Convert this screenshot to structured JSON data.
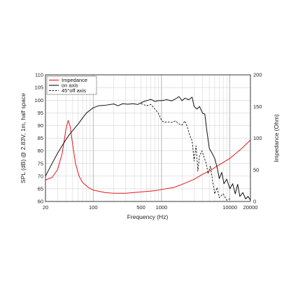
{
  "chart_data": {
    "type": "line",
    "xlabel": "Frequency (Hz)",
    "ylabel": "SPL (dB) @ 2.83V, 1m, half space",
    "y2label": "Impedance (Ohm)",
    "xscale": "log",
    "xlim": [
      20,
      20000
    ],
    "ylim": [
      60,
      110
    ],
    "y2lim": [
      0,
      200
    ],
    "grid": true,
    "legend_position": "top-left",
    "x_tick_labels": [
      {
        "value": 20,
        "label": "20"
      },
      {
        "value": 100,
        "label": "100"
      },
      {
        "value": 500,
        "label": "500"
      },
      {
        "value": 1000,
        "label": "1000"
      },
      {
        "value": 10000,
        "label": "10000"
      },
      {
        "value": 20000,
        "label": "20000"
      }
    ],
    "y_ticks": [
      60,
      65,
      70,
      75,
      80,
      85,
      90,
      95,
      100,
      105,
      110
    ],
    "y2_ticks": [
      0,
      50,
      100,
      150,
      200
    ],
    "series": [
      {
        "name": "Impedance",
        "axis": "right",
        "color": "#e8141b",
        "dash": "solid",
        "points": [
          [
            20,
            34
          ],
          [
            25,
            38
          ],
          [
            30,
            50
          ],
          [
            35,
            75
          ],
          [
            40,
            115
          ],
          [
            43,
            128
          ],
          [
            46,
            118
          ],
          [
            50,
            90
          ],
          [
            55,
            60
          ],
          [
            62,
            40
          ],
          [
            70,
            30
          ],
          [
            85,
            22
          ],
          [
            100,
            18
          ],
          [
            150,
            14
          ],
          [
            200,
            13
          ],
          [
            300,
            13
          ],
          [
            500,
            15
          ],
          [
            800,
            17
          ],
          [
            1000,
            19
          ],
          [
            1500,
            22
          ],
          [
            2000,
            27
          ],
          [
            3000,
            35
          ],
          [
            4000,
            43
          ],
          [
            5000,
            48
          ],
          [
            7000,
            58
          ],
          [
            10000,
            68
          ],
          [
            15000,
            84
          ],
          [
            20000,
            97
          ]
        ]
      },
      {
        "name": "on axis",
        "axis": "left",
        "color": "#111111",
        "dash": "solid",
        "points": [
          [
            20,
            70
          ],
          [
            25,
            75
          ],
          [
            30,
            79
          ],
          [
            35,
            82
          ],
          [
            40,
            84.5
          ],
          [
            45,
            86.5
          ],
          [
            50,
            88
          ],
          [
            60,
            90.5
          ],
          [
            70,
            93
          ],
          [
            80,
            95
          ],
          [
            100,
            97
          ],
          [
            120,
            97.8
          ],
          [
            150,
            98
          ],
          [
            200,
            98.5
          ],
          [
            230,
            97.8
          ],
          [
            270,
            98.6
          ],
          [
            320,
            98.4
          ],
          [
            380,
            98.6
          ],
          [
            450,
            98.3
          ],
          [
            520,
            99.2
          ],
          [
            600,
            99.8
          ],
          [
            700,
            100.3
          ],
          [
            800,
            99.5
          ],
          [
            900,
            99.8
          ],
          [
            1000,
            99.8
          ],
          [
            1200,
            100.2
          ],
          [
            1400,
            99.7
          ],
          [
            1600,
            100.5
          ],
          [
            1800,
            101.4
          ],
          [
            2000,
            99.8
          ],
          [
            2200,
            100.8
          ],
          [
            2500,
            100.2
          ],
          [
            2800,
            101.2
          ],
          [
            3000,
            97.5
          ],
          [
            3300,
            96.5
          ],
          [
            3600,
            97.5
          ],
          [
            4000,
            94.8
          ],
          [
            4300,
            94.5
          ],
          [
            4600,
            88
          ],
          [
            5000,
            81
          ],
          [
            5500,
            79
          ],
          [
            6000,
            77
          ],
          [
            6500,
            73.5
          ],
          [
            7000,
            69
          ],
          [
            7600,
            71.5
          ],
          [
            8200,
            67
          ],
          [
            9000,
            68.8
          ],
          [
            10000,
            65
          ],
          [
            11000,
            67
          ],
          [
            12000,
            63
          ],
          [
            13000,
            66.8
          ],
          [
            14000,
            62
          ],
          [
            15500,
            63.5
          ],
          [
            17000,
            61
          ],
          [
            18500,
            62
          ],
          [
            20000,
            60.5
          ]
        ]
      },
      {
        "name": "45°off axis",
        "axis": "left",
        "color": "#111111",
        "dash": "dashed",
        "points": [
          [
            500,
            98.7
          ],
          [
            600,
            97.8
          ],
          [
            700,
            98.3
          ],
          [
            800,
            96.5
          ],
          [
            900,
            94.8
          ],
          [
            1000,
            92
          ],
          [
            1100,
            91.2
          ],
          [
            1200,
            91.5
          ],
          [
            1400,
            91.2
          ],
          [
            1600,
            91.8
          ],
          [
            1800,
            90.6
          ],
          [
            2000,
            90.2
          ],
          [
            2200,
            91.8
          ],
          [
            2400,
            89.2
          ],
          [
            2600,
            86
          ],
          [
            2800,
            84
          ],
          [
            3000,
            76
          ],
          [
            3200,
            82
          ],
          [
            3400,
            72
          ],
          [
            3600,
            78
          ],
          [
            3900,
            80
          ],
          [
            4200,
            77.5
          ],
          [
            4500,
            75
          ],
          [
            4800,
            71
          ],
          [
            5200,
            74
          ],
          [
            5600,
            68
          ],
          [
            6000,
            63
          ],
          [
            6500,
            65.5
          ],
          [
            7000,
            61.5
          ],
          [
            8000,
            63
          ],
          [
            9000,
            60.5
          ],
          [
            10000,
            61
          ]
        ]
      }
    ]
  }
}
